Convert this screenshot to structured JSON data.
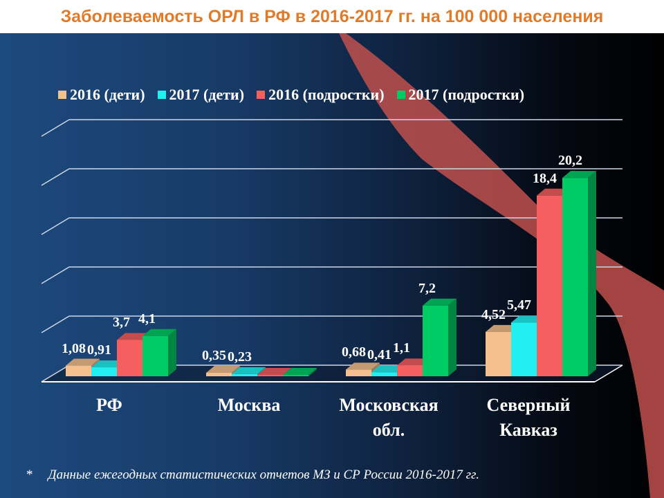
{
  "title": "Заболеваемость ОРЛ в РФ в 2016-2017 гг. на 100 000 населения",
  "legend": [
    {
      "label": "2016 (дети)",
      "color": "#f5c08e"
    },
    {
      "label": "2017 (дети)",
      "color": "#22f0f0"
    },
    {
      "label": "2016 (подростки)",
      "color": "#f55f5f"
    },
    {
      "label": "2017 (подростки)",
      "color": "#00cc66"
    }
  ],
  "categories": [
    "РФ",
    "Москва",
    "Московская обл.",
    "Северный Кавказ"
  ],
  "category_lines": [
    [
      "РФ"
    ],
    [
      "Москва"
    ],
    [
      "Московская",
      "обл."
    ],
    [
      "Северный",
      "Кавказ"
    ]
  ],
  "value_labels": [
    [
      "1,08",
      "0,91",
      "3,7",
      "4,1"
    ],
    [
      "0,35",
      "0,23",
      "",
      ""
    ],
    [
      "0,68",
      "0,41",
      "1,1",
      "7,2"
    ],
    [
      "4,52",
      "5,47",
      "18,4",
      "20,2"
    ]
  ],
  "footnote": {
    "marker": "*",
    "text": "Данные ежегодных статистических отчетов МЗ и СР России 2016-2017 гг."
  },
  "chart_data": {
    "type": "bar",
    "title": "Заболеваемость ОРЛ в РФ в 2016-2017 гг. на 100 000 населения",
    "categories": [
      "РФ",
      "Москва",
      "Московская обл.",
      "Северный Кавказ"
    ],
    "series": [
      {
        "name": "2016 (дети)",
        "values": [
          1.08,
          0.35,
          0.68,
          4.52
        ]
      },
      {
        "name": "2017 (дети)",
        "values": [
          0.91,
          0.23,
          0.41,
          5.47
        ]
      },
      {
        "name": "2016 (подростки)",
        "values": [
          3.7,
          0,
          1.1,
          18.4
        ]
      },
      {
        "name": "2017 (подростки)",
        "values": [
          4.1,
          0,
          7.2,
          20.2
        ]
      }
    ],
    "xlabel": "",
    "ylabel": "",
    "ylim": [
      0,
      25
    ],
    "grid": true,
    "legend_position": "top",
    "style": "3d-clustered-column",
    "annotations": [
      "* Данные ежегодных статистических отчетов МЗ и СР России 2016-2017 гг."
    ]
  }
}
